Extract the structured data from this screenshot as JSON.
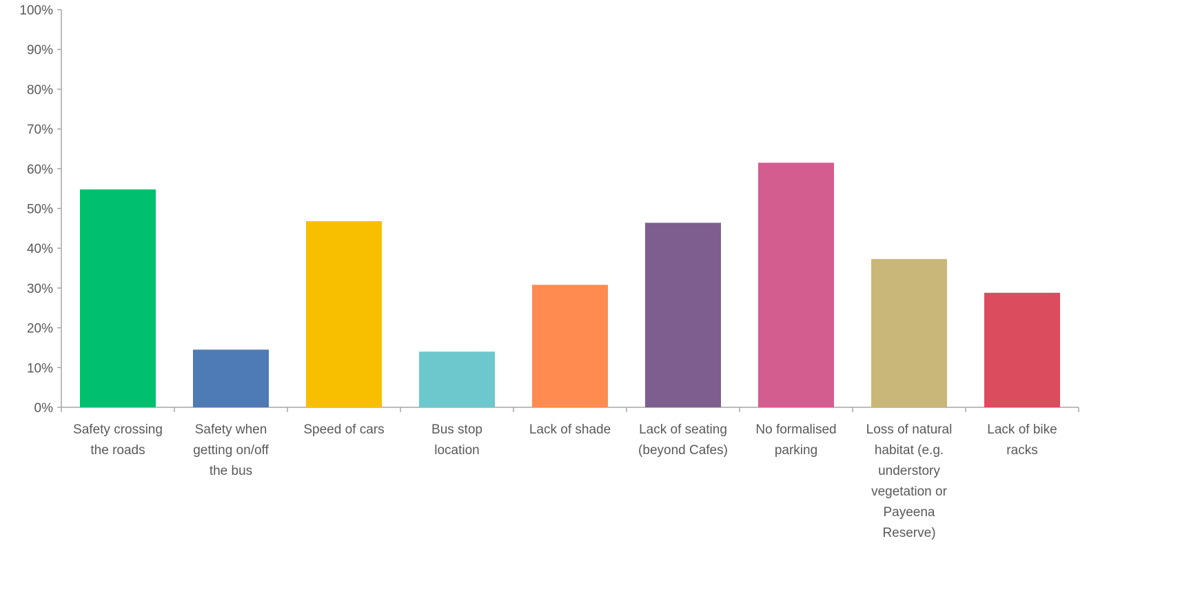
{
  "chart_data": {
    "type": "bar",
    "title": "",
    "xlabel": "",
    "ylabel": "",
    "ylim": [
      0,
      100
    ],
    "y_tick_labels": [
      "0%",
      "10%",
      "20%",
      "30%",
      "40%",
      "50%",
      "60%",
      "70%",
      "80%",
      "90%",
      "100%"
    ],
    "grid": false,
    "legend": "none",
    "categories": [
      "Safety crossing the roads",
      "Safety when getting on/off the bus",
      "Speed of cars",
      "Bus stop location",
      "Lack of shade",
      "Lack of seating (beyond Cafes)",
      "No formalised parking",
      "Loss of natural habitat (e.g. understory vegetation or Payeena Reserve)",
      "Lack of bike racks"
    ],
    "category_label_lines": [
      [
        "Safety crossing",
        "the roads"
      ],
      [
        "Safety when",
        "getting on/off",
        "the bus"
      ],
      [
        "Speed of cars"
      ],
      [
        "Bus stop",
        "location"
      ],
      [
        "Lack of shade"
      ],
      [
        "Lack of seating",
        "(beyond Cafes)"
      ],
      [
        "No formalised",
        "parking"
      ],
      [
        "Loss of natural",
        "habitat (e.g.",
        "understory",
        "vegetation or",
        "Payeena",
        "Reserve)"
      ],
      [
        "Lack of bike",
        "racks"
      ]
    ],
    "values": [
      54.8,
      14.5,
      46.8,
      14.0,
      30.8,
      46.4,
      61.5,
      37.3,
      28.8
    ],
    "colors": [
      "#00c06f",
      "#4e7ab5",
      "#f8be00",
      "#6cc8cc",
      "#ff8b50",
      "#7e5e8e",
      "#d45d8f",
      "#c9b77a",
      "#db4c5f"
    ],
    "axis_color": "#a6a6a6",
    "text_color": "#595959"
  }
}
